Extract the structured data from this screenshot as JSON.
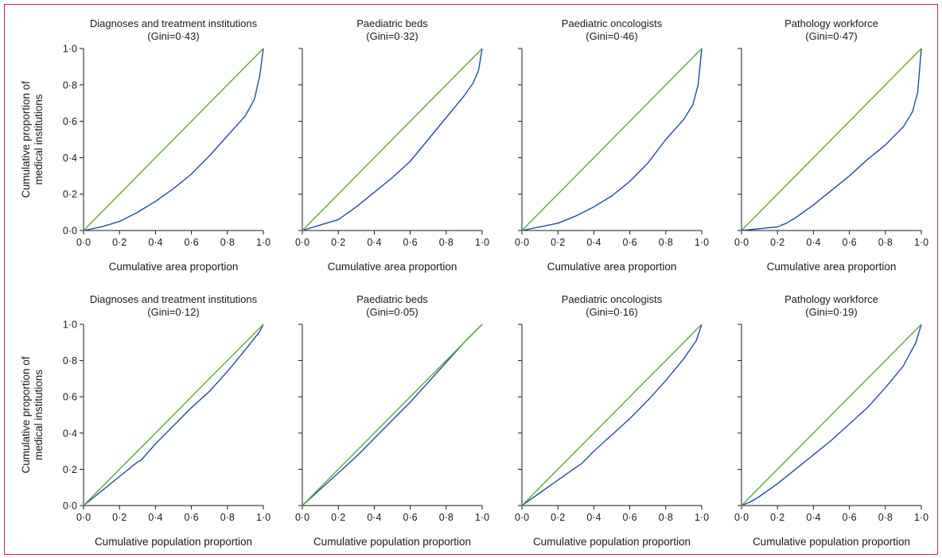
{
  "colors": {
    "curve": "#1f4e9a",
    "equality_line": "#5daa35",
    "axis": "#1a1a1a",
    "frame": "#c4235f"
  },
  "chart_data": [
    {
      "type": "line",
      "title": "Diagnoses and treatment institutions",
      "subtitle": "(Gini=0·43)",
      "xlabel": "Cumulative area proportion",
      "ylabel": "Cumulative proportion of medical institutions",
      "xlim": [
        0,
        1
      ],
      "ylim": [
        0,
        1
      ],
      "xticks": [
        "0·0",
        "0·2",
        "0·4",
        "0·6",
        "0·8",
        "1·0"
      ],
      "yticks": [
        "0·0",
        "0·2",
        "0·4",
        "0·6",
        "0·8",
        "1·0"
      ],
      "series": [
        {
          "x": [
            0,
            0.1,
            0.2,
            0.3,
            0.4,
            0.5,
            0.6,
            0.7,
            0.8,
            0.9,
            0.95,
            0.98,
            1.0
          ],
          "y": [
            0,
            0.02,
            0.05,
            0.1,
            0.16,
            0.23,
            0.31,
            0.41,
            0.52,
            0.63,
            0.72,
            0.85,
            1.0
          ]
        },
        {
          "x": [
            0,
            1
          ],
          "y": [
            0,
            1
          ]
        }
      ]
    },
    {
      "type": "line",
      "title": "Paediatric beds",
      "subtitle": "(Gini=0·32)",
      "xlabel": "Cumulative area proportion",
      "ylabel": "",
      "xlim": [
        0,
        1
      ],
      "ylim": [
        0,
        1
      ],
      "xticks": [
        "0·0",
        "0·2",
        "0·4",
        "0·6",
        "0·8",
        "1·0"
      ],
      "yticks": [],
      "series": [
        {
          "x": [
            0,
            0.1,
            0.2,
            0.3,
            0.4,
            0.5,
            0.6,
            0.7,
            0.8,
            0.9,
            0.95,
            0.98,
            1.0
          ],
          "y": [
            0,
            0.03,
            0.06,
            0.13,
            0.21,
            0.29,
            0.38,
            0.5,
            0.62,
            0.74,
            0.81,
            0.88,
            1.0
          ]
        },
        {
          "x": [
            0,
            1
          ],
          "y": [
            0,
            1
          ]
        }
      ]
    },
    {
      "type": "line",
      "title": "Paediatric oncologists",
      "subtitle": "(Gini=0·46)",
      "xlabel": "Cumulative area proportion",
      "ylabel": "",
      "xlim": [
        0,
        1
      ],
      "ylim": [
        0,
        1
      ],
      "xticks": [
        "0·0",
        "0·2",
        "0·4",
        "0·6",
        "0·8",
        "1·0"
      ],
      "yticks": [],
      "series": [
        {
          "x": [
            0,
            0.1,
            0.2,
            0.3,
            0.4,
            0.5,
            0.6,
            0.7,
            0.8,
            0.9,
            0.95,
            0.98,
            1.0
          ],
          "y": [
            0,
            0.02,
            0.04,
            0.08,
            0.13,
            0.19,
            0.27,
            0.37,
            0.5,
            0.61,
            0.69,
            0.8,
            1.0
          ]
        },
        {
          "x": [
            0,
            1
          ],
          "y": [
            0,
            1
          ]
        }
      ]
    },
    {
      "type": "line",
      "title": "Pathology workforce",
      "subtitle": "(Gini=0·47)",
      "xlabel": "Cumulative area proportion",
      "ylabel": "",
      "xlim": [
        0,
        1
      ],
      "ylim": [
        0,
        1
      ],
      "xticks": [
        "0·0",
        "0·2",
        "0·4",
        "0·6",
        "0·8",
        "1·0"
      ],
      "yticks": [],
      "series": [
        {
          "x": [
            0,
            0.1,
            0.2,
            0.25,
            0.3,
            0.4,
            0.5,
            0.6,
            0.7,
            0.8,
            0.9,
            0.95,
            0.98,
            1.0
          ],
          "y": [
            0,
            0.01,
            0.02,
            0.04,
            0.07,
            0.14,
            0.22,
            0.3,
            0.39,
            0.47,
            0.57,
            0.65,
            0.76,
            1.0
          ]
        },
        {
          "x": [
            0,
            1
          ],
          "y": [
            0,
            1
          ]
        }
      ]
    },
    {
      "type": "line",
      "title": "Diagnoses and treatment institutions",
      "subtitle": "(Gini=0·12)",
      "xlabel": "Cumulative population proportion",
      "ylabel": "Cumulative proportion of medical institutions",
      "xlim": [
        0,
        1
      ],
      "ylim": [
        0,
        1
      ],
      "xticks": [
        "0·0",
        "0·2",
        "0·4",
        "0·6",
        "0·8",
        "1·0"
      ],
      "yticks": [
        "0·0",
        "0·2",
        "0·4",
        "0·6",
        "0·8",
        "1·0"
      ],
      "series": [
        {
          "x": [
            0,
            0.1,
            0.2,
            0.3,
            0.32,
            0.4,
            0.5,
            0.6,
            0.7,
            0.8,
            0.9,
            0.98,
            1.0
          ],
          "y": [
            0,
            0.08,
            0.16,
            0.24,
            0.25,
            0.34,
            0.44,
            0.54,
            0.63,
            0.74,
            0.86,
            0.96,
            1.0
          ]
        },
        {
          "x": [
            0,
            1
          ],
          "y": [
            0,
            1
          ]
        }
      ]
    },
    {
      "type": "line",
      "title": "Paediatric beds",
      "subtitle": "(Gini=0·05)",
      "xlabel": "Cumulative population proportion",
      "ylabel": "",
      "xlim": [
        0,
        1
      ],
      "ylim": [
        0,
        1
      ],
      "xticks": [
        "0·0",
        "0·2",
        "0·4",
        "0·6",
        "0·8",
        "1·0"
      ],
      "yticks": [],
      "series": [
        {
          "x": [
            0,
            0.1,
            0.2,
            0.3,
            0.4,
            0.5,
            0.6,
            0.7,
            0.8,
            0.9,
            1.0
          ],
          "y": [
            0,
            0.09,
            0.18,
            0.27,
            0.37,
            0.47,
            0.57,
            0.68,
            0.79,
            0.9,
            1.0
          ]
        },
        {
          "x": [
            0,
            1
          ],
          "y": [
            0,
            1
          ]
        }
      ]
    },
    {
      "type": "line",
      "title": "Paediatric oncologists",
      "subtitle": "(Gini=0·16)",
      "xlabel": "Cumulative population proportion",
      "ylabel": "",
      "xlim": [
        0,
        1
      ],
      "ylim": [
        0,
        1
      ],
      "xticks": [
        "0·0",
        "0·2",
        "0·4",
        "0·6",
        "0·8",
        "1·0"
      ],
      "yticks": [],
      "series": [
        {
          "x": [
            0,
            0.1,
            0.2,
            0.3,
            0.33,
            0.4,
            0.5,
            0.6,
            0.7,
            0.8,
            0.9,
            0.97,
            1.0
          ],
          "y": [
            0,
            0.07,
            0.14,
            0.21,
            0.23,
            0.3,
            0.39,
            0.48,
            0.58,
            0.69,
            0.81,
            0.91,
            1.0
          ]
        },
        {
          "x": [
            0,
            1
          ],
          "y": [
            0,
            1
          ]
        }
      ]
    },
    {
      "type": "line",
      "title": "Pathology workforce",
      "subtitle": "(Gini=0·19)",
      "xlabel": "Cumulative population proportion",
      "ylabel": "",
      "xlim": [
        0,
        1
      ],
      "ylim": [
        0,
        1
      ],
      "xticks": [
        "0·0",
        "0·2",
        "0·4",
        "0·6",
        "0·8",
        "1·0"
      ],
      "yticks": [],
      "series": [
        {
          "x": [
            0,
            0.05,
            0.1,
            0.2,
            0.3,
            0.4,
            0.5,
            0.6,
            0.7,
            0.8,
            0.9,
            0.97,
            1.0
          ],
          "y": [
            0,
            0.02,
            0.05,
            0.12,
            0.2,
            0.28,
            0.36,
            0.45,
            0.54,
            0.65,
            0.77,
            0.9,
            1.0
          ]
        },
        {
          "x": [
            0,
            1
          ],
          "y": [
            0,
            1
          ]
        }
      ]
    }
  ]
}
